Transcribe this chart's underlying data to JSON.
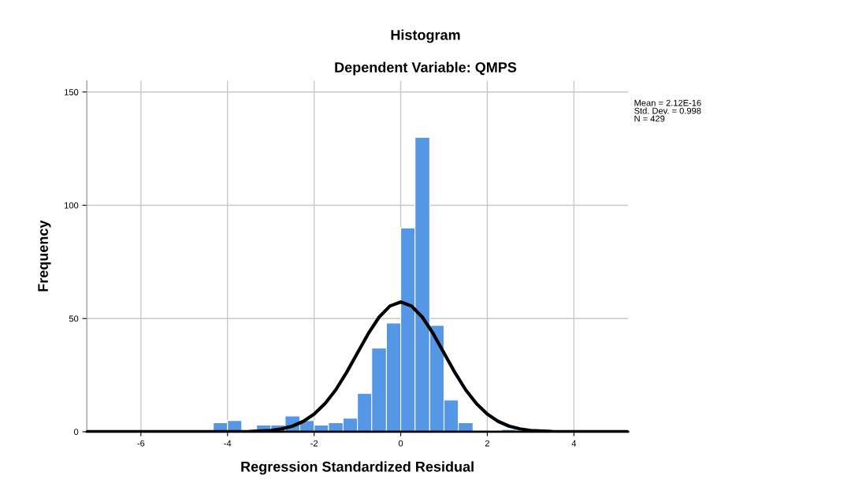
{
  "chart_data": {
    "type": "histogram",
    "title": "Histogram",
    "subtitle": "Dependent Variable: QMPS",
    "xlabel": "Regression Standardized Residual",
    "ylabel": "Frequency",
    "series": [
      {
        "color": "#5597e4",
        "bins": [
          -4.33,
          -4,
          -3.67,
          -3.33,
          -3,
          -2.67,
          -2.33,
          -2,
          -1.67,
          -1.33,
          -1,
          -0.67,
          -0.33,
          0,
          0.33,
          0.67,
          1,
          1.33,
          1.67,
          2.33,
          2.67
        ],
        "values": [
          4,
          5,
          0,
          3,
          3,
          7,
          5,
          3,
          4,
          6,
          17,
          37,
          48,
          90,
          130,
          47,
          14,
          4,
          0,
          1
        ]
      },
      {
        "type": "line",
        "color": "#000000",
        "x": [
          -7.25,
          -4,
          -3.5,
          -3,
          -2.75,
          -2.5,
          -2.25,
          -2,
          -1.75,
          -1.5,
          -1.25,
          -1,
          -0.75,
          -0.5,
          -0.25,
          0,
          0.25,
          0.5,
          0.75,
          1,
          1.25,
          1.5,
          1.75,
          2,
          2.25,
          2.5,
          2.75,
          3,
          3.5,
          4,
          5.25
        ],
        "values": [
          0,
          0,
          0.1,
          0.6,
          1.3,
          2.5,
          4.6,
          7.8,
          12.4,
          18.5,
          26.2,
          34.8,
          43.3,
          50.6,
          55.5,
          57.3,
          55.5,
          50.6,
          43.3,
          34.8,
          26.2,
          18.5,
          12.4,
          7.8,
          4.6,
          2.5,
          1.3,
          0.6,
          0.1,
          0,
          0
        ]
      }
    ],
    "xlim": [
      -7.25,
      5.25
    ],
    "xticks": [
      -6,
      -4,
      -2,
      0,
      2,
      4
    ],
    "ylim": [
      0,
      155
    ],
    "yticks": [
      0,
      50,
      100,
      150
    ],
    "grid": true,
    "annotations": [
      "Mean = 2.12E-16\nStd. Dev. = 0.998\nN = 429"
    ]
  }
}
